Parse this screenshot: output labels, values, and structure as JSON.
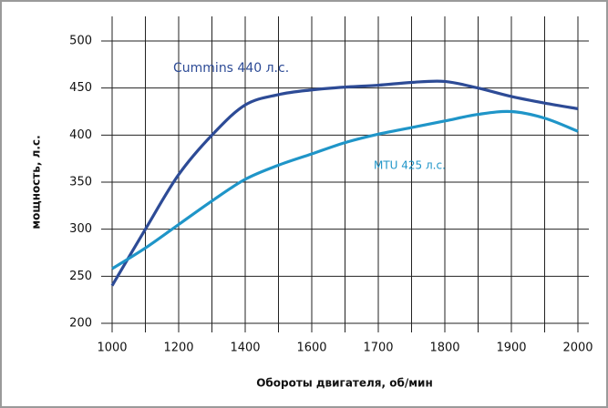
{
  "chart_data": {
    "type": "line",
    "xlabel": "Обороты двигателя, об/мин",
    "ylabel": "мощность, л.с.",
    "categories": [
      "1000",
      null,
      "1200",
      null,
      "1400",
      null,
      "1600",
      null,
      "1700",
      null,
      "1800",
      null,
      "1900",
      null,
      "2000"
    ],
    "series": [
      {
        "name": "Cummins 440 л.с.",
        "color": "#2d4b96",
        "values": [
          240,
          300,
          358,
          400,
          432,
          443,
          448,
          451,
          453,
          456,
          457,
          450,
          441,
          434,
          428
        ]
      },
      {
        "name": "MTU 425 л.с.",
        "color": "#1f95c8",
        "values": [
          258,
          280,
          305,
          330,
          353,
          368,
          380,
          392,
          401,
          408,
          415,
          422,
          425,
          418,
          404
        ]
      }
    ],
    "ylim": [
      200,
      500
    ],
    "yticks": [
      200,
      250,
      300,
      350,
      400,
      450,
      500
    ],
    "grid": true
  }
}
